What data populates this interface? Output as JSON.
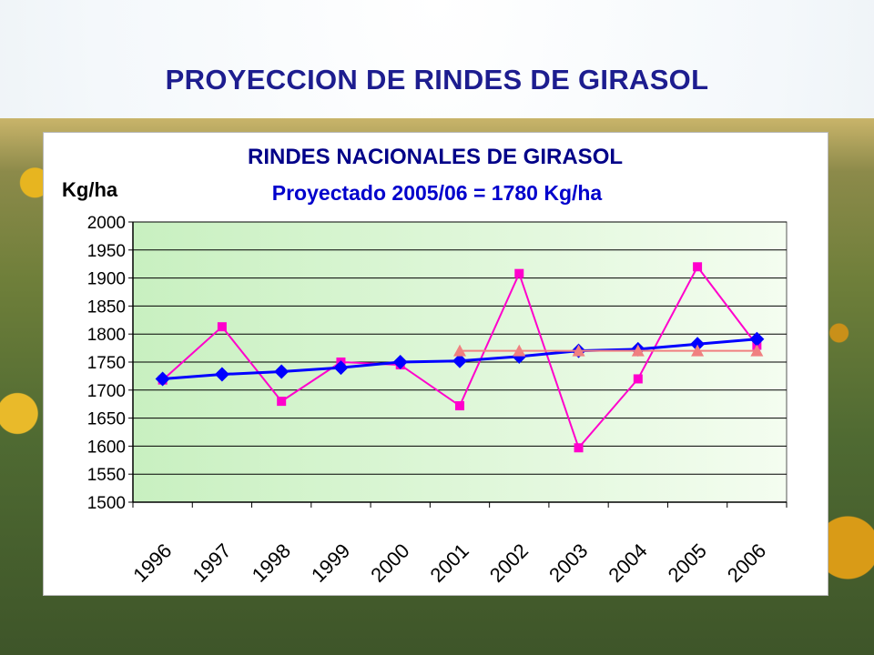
{
  "page": {
    "title": "PROYECCION DE RINDES DE GIRASOL"
  },
  "chart_data": {
    "type": "line",
    "title": "RINDES NACIONALES DE GIRASOL",
    "subtitle": "Proyectado 2005/06 = 1780 Kg/ha",
    "ylabel": "Kg/ha",
    "xlabel": "",
    "ylim": [
      1500,
      2000
    ],
    "ystep": 50,
    "yticks": [
      "2000",
      "1950",
      "1900",
      "1850",
      "1800",
      "1750",
      "1700",
      "1650",
      "1600",
      "1550",
      "1500"
    ],
    "categories": [
      "1996",
      "1997",
      "1998",
      "1999",
      "2000",
      "2001",
      "2002",
      "2003",
      "2004",
      "2005",
      "2006"
    ],
    "grid": true,
    "legend": "none",
    "series": [
      {
        "values": [
          1718,
          1813,
          1680,
          1750,
          1745,
          1672,
          1908,
          1597,
          1720,
          1920,
          1780
        ],
        "color": "#ff00cc",
        "marker": "square"
      },
      {
        "values": [
          1720,
          1728,
          1733,
          1740,
          1750,
          1752,
          1760,
          1770,
          1773,
          1782,
          1791
        ],
        "color": "#0000ff",
        "marker": "diamond"
      },
      {
        "values": [
          null,
          null,
          null,
          null,
          null,
          1770,
          1770,
          1770,
          1770,
          1770,
          1770
        ],
        "color": "#f08080",
        "marker": "triangle"
      }
    ]
  }
}
